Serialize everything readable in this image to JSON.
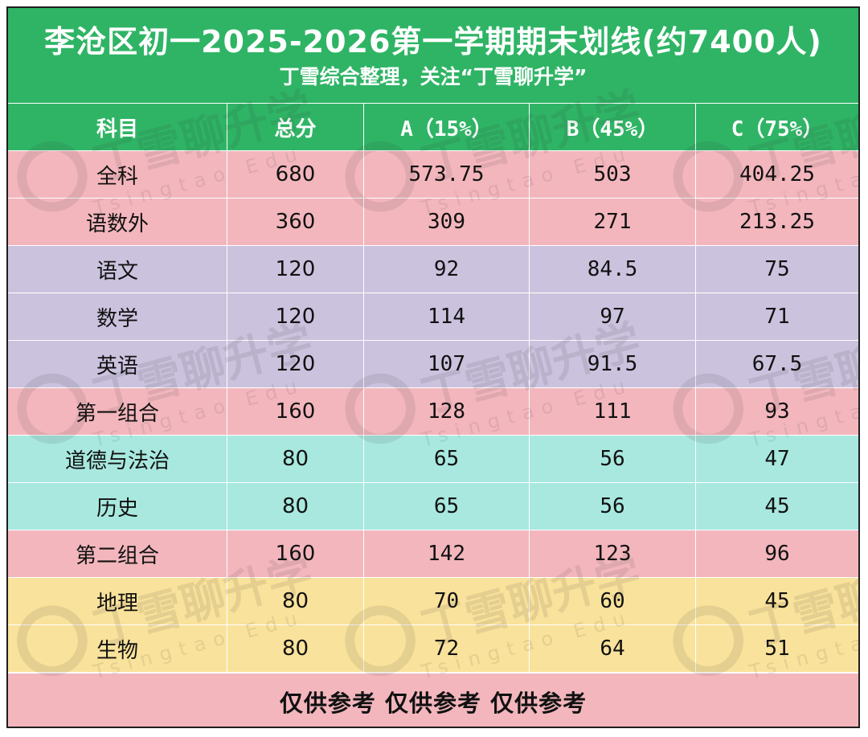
{
  "title": "李沧区初一2025-2026第一学期期末划线(约7400人)",
  "subtitle": "丁雪综合整理，关注“丁雪聊升学”",
  "columns": [
    "科目",
    "总分",
    "A（15%）",
    "B（45%）",
    "C（75%）"
  ],
  "rows": [
    {
      "subject": "全科",
      "total": "680",
      "a": "573.75",
      "b": "503",
      "c": "404.25",
      "color": "#f3b6bd"
    },
    {
      "subject": "语数外",
      "total": "360",
      "a": "309",
      "b": "271",
      "c": "213.25",
      "color": "#f3b6bd"
    },
    {
      "subject": "语文",
      "total": "120",
      "a": "92",
      "b": "84.5",
      "c": "75",
      "color": "#cbc2de"
    },
    {
      "subject": "数学",
      "total": "120",
      "a": "114",
      "b": "97",
      "c": "71",
      "color": "#cbc2de"
    },
    {
      "subject": "英语",
      "total": "120",
      "a": "107",
      "b": "91.5",
      "c": "67.5",
      "color": "#cbc2de"
    },
    {
      "subject": "第一组合",
      "total": "160",
      "a": "128",
      "b": "111",
      "c": "93",
      "color": "#f3b6bd"
    },
    {
      "subject": "道德与法治",
      "total": "80",
      "a": "65",
      "b": "56",
      "c": "47",
      "color": "#a8e8df"
    },
    {
      "subject": "历史",
      "total": "80",
      "a": "65",
      "b": "56",
      "c": "45",
      "color": "#a8e8df"
    },
    {
      "subject": "第二组合",
      "total": "160",
      "a": "142",
      "b": "123",
      "c": "96",
      "color": "#f3b6bd"
    },
    {
      "subject": "地理",
      "total": "80",
      "a": "70",
      "b": "60",
      "c": "45",
      "color": "#f9e29b"
    },
    {
      "subject": "生物",
      "total": "80",
      "a": "72",
      "b": "64",
      "c": "51",
      "color": "#f9e29b"
    }
  ],
  "footer": "仅供参考  仅供参考  仅供参考",
  "watermark": {
    "text": "丁雪聊升学",
    "subtext": "Tsingtao Edu"
  },
  "colors": {
    "header": "#2fb465",
    "pink": "#f3b6bd",
    "lavender": "#cbc2de",
    "teal": "#a8e8df",
    "yellow": "#f9e29b"
  }
}
